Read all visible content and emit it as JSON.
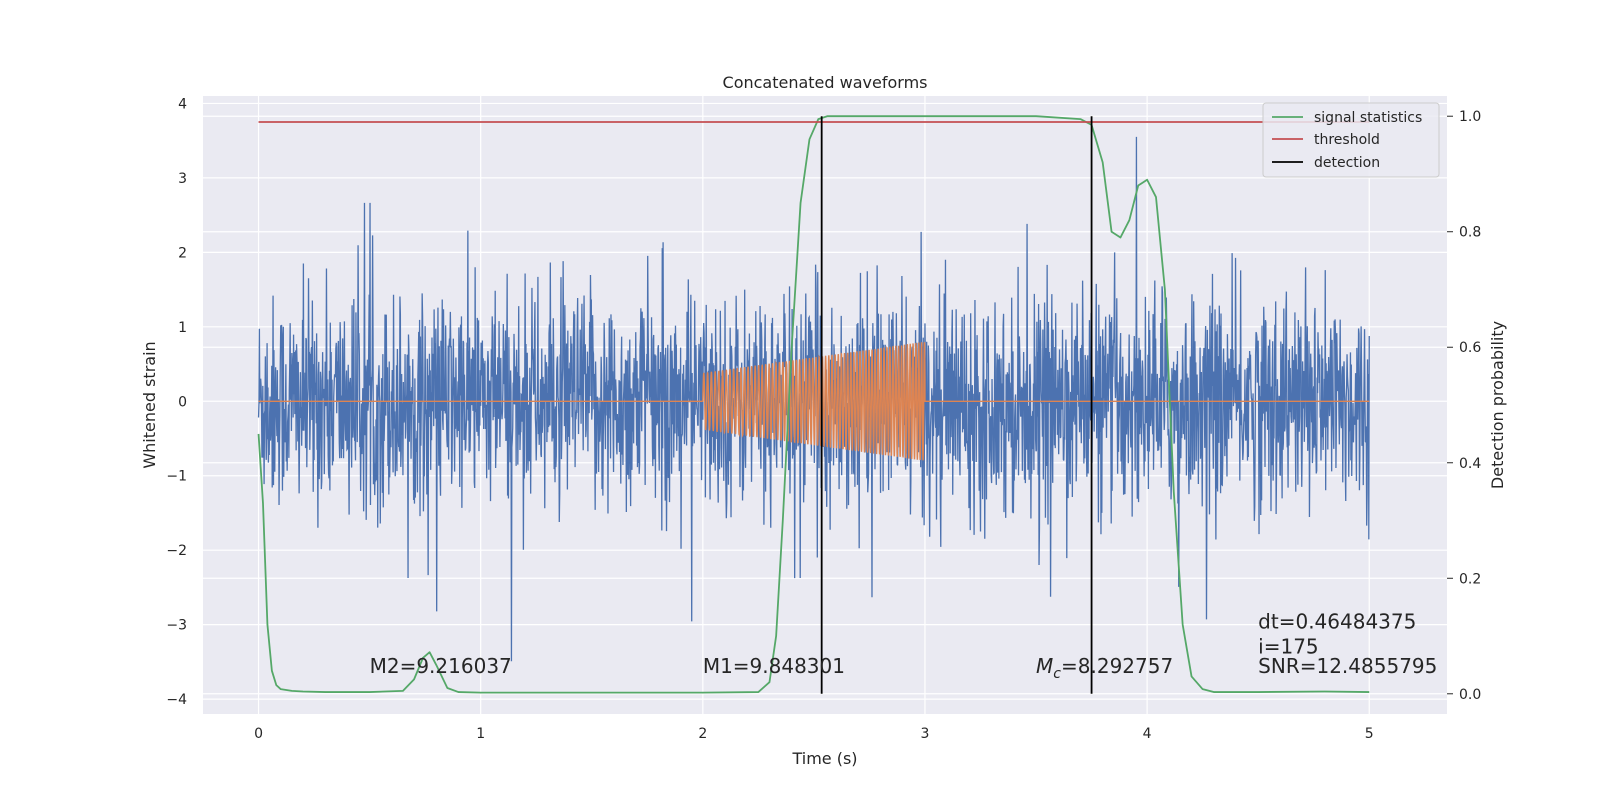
{
  "chart_data": {
    "type": "line",
    "title": "Concatenated waveforms",
    "xlabel": "Time (s)",
    "ylabel": "Whitened strain",
    "y2label": "Detection probability",
    "xlim": [
      -0.25,
      5.35
    ],
    "ylim": [
      -4.2,
      4.1
    ],
    "y2lim": [
      -0.035,
      1.035
    ],
    "x_ticks": [
      0,
      1,
      2,
      3,
      4,
      5
    ],
    "y_ticks": [
      -4,
      -3,
      -2,
      -1,
      0,
      1,
      2,
      3,
      4
    ],
    "y2_ticks": [
      0.0,
      0.2,
      0.4,
      0.6,
      0.8,
      1.0
    ],
    "x_tick_labels": [
      "0",
      "1",
      "2",
      "3",
      "4",
      "5"
    ],
    "y_tick_labels": [
      "−4",
      "−3",
      "−2",
      "−1",
      "0",
      "1",
      "2",
      "3",
      "4"
    ],
    "y2_tick_labels": [
      "0.0",
      "0.2",
      "0.4",
      "0.6",
      "0.8",
      "1.0"
    ],
    "grid": true,
    "legend_position": "top-right",
    "series": [
      {
        "id": "strain",
        "color": "#4c72b0",
        "description_points": {
          "x_range": [
            0,
            5
          ],
          "typical_amplitude": 0.7,
          "peak_max": 3.75,
          "peak_min": -3.85
        }
      },
      {
        "id": "template",
        "color": "#dd8452",
        "chirp": {
          "x_start": 2.0,
          "x_end": 3.0,
          "amp_start": 0.38,
          "amp_end": 0.8,
          "cycles": 58
        }
      },
      {
        "name": "signal statistics",
        "color": "#55a868",
        "axis": "right",
        "x": [
          0,
          0.02,
          0.04,
          0.06,
          0.08,
          0.1,
          0.15,
          0.2,
          0.3,
          0.5,
          0.65,
          0.7,
          0.74,
          0.77,
          0.8,
          0.85,
          0.9,
          1.0,
          1.5,
          2.0,
          2.25,
          2.3,
          2.33,
          2.36,
          2.4,
          2.44,
          2.48,
          2.52,
          2.56,
          2.6,
          3.0,
          3.5,
          3.7,
          3.75,
          3.8,
          3.84,
          3.88,
          3.92,
          3.96,
          4.0,
          4.04,
          4.08,
          4.12,
          4.16,
          4.2,
          4.25,
          4.3,
          4.5,
          4.8,
          5.0
        ],
        "y": [
          0.45,
          0.33,
          0.12,
          0.04,
          0.015,
          0.008,
          0.005,
          0.004,
          0.003,
          0.003,
          0.005,
          0.025,
          0.062,
          0.072,
          0.05,
          0.01,
          0.003,
          0.002,
          0.002,
          0.002,
          0.003,
          0.02,
          0.1,
          0.3,
          0.6,
          0.85,
          0.96,
          0.995,
          1.0,
          1.0,
          1.0,
          1.0,
          0.995,
          0.985,
          0.92,
          0.8,
          0.79,
          0.82,
          0.88,
          0.89,
          0.86,
          0.7,
          0.35,
          0.12,
          0.03,
          0.008,
          0.003,
          0.003,
          0.004,
          0.003
        ]
      },
      {
        "name": "threshold",
        "color": "#c44e52",
        "axis": "right",
        "x": [
          0,
          5
        ],
        "y": [
          0.99,
          0.99
        ]
      },
      {
        "name": "detection",
        "color": "#000000",
        "axis": "right",
        "x": [
          2.535,
          3.75
        ],
        "y_range": [
          0.0,
          1.0
        ]
      }
    ],
    "annotations": [
      {
        "text": "M2=9.216037",
        "x": 0.5,
        "y": -3.65
      },
      {
        "text": "M1=9.848301",
        "x": 2.0,
        "y": -3.65
      },
      {
        "text": "=8.292757",
        "math_prefix": "M",
        "math_sub": "c",
        "x": 3.5,
        "y": -3.65
      },
      {
        "text": "dt=0.46484375",
        "x": 4.5,
        "y": -3.05
      },
      {
        "text": " i=175",
        "x": 4.5,
        "y": -3.39
      },
      {
        "text": "SNR=12.4855795",
        "x": 4.5,
        "y": -3.65
      }
    ]
  },
  "colors": {
    "plot_background": "#eaeaf2",
    "grid": "#ffffff",
    "text": "#262626"
  }
}
